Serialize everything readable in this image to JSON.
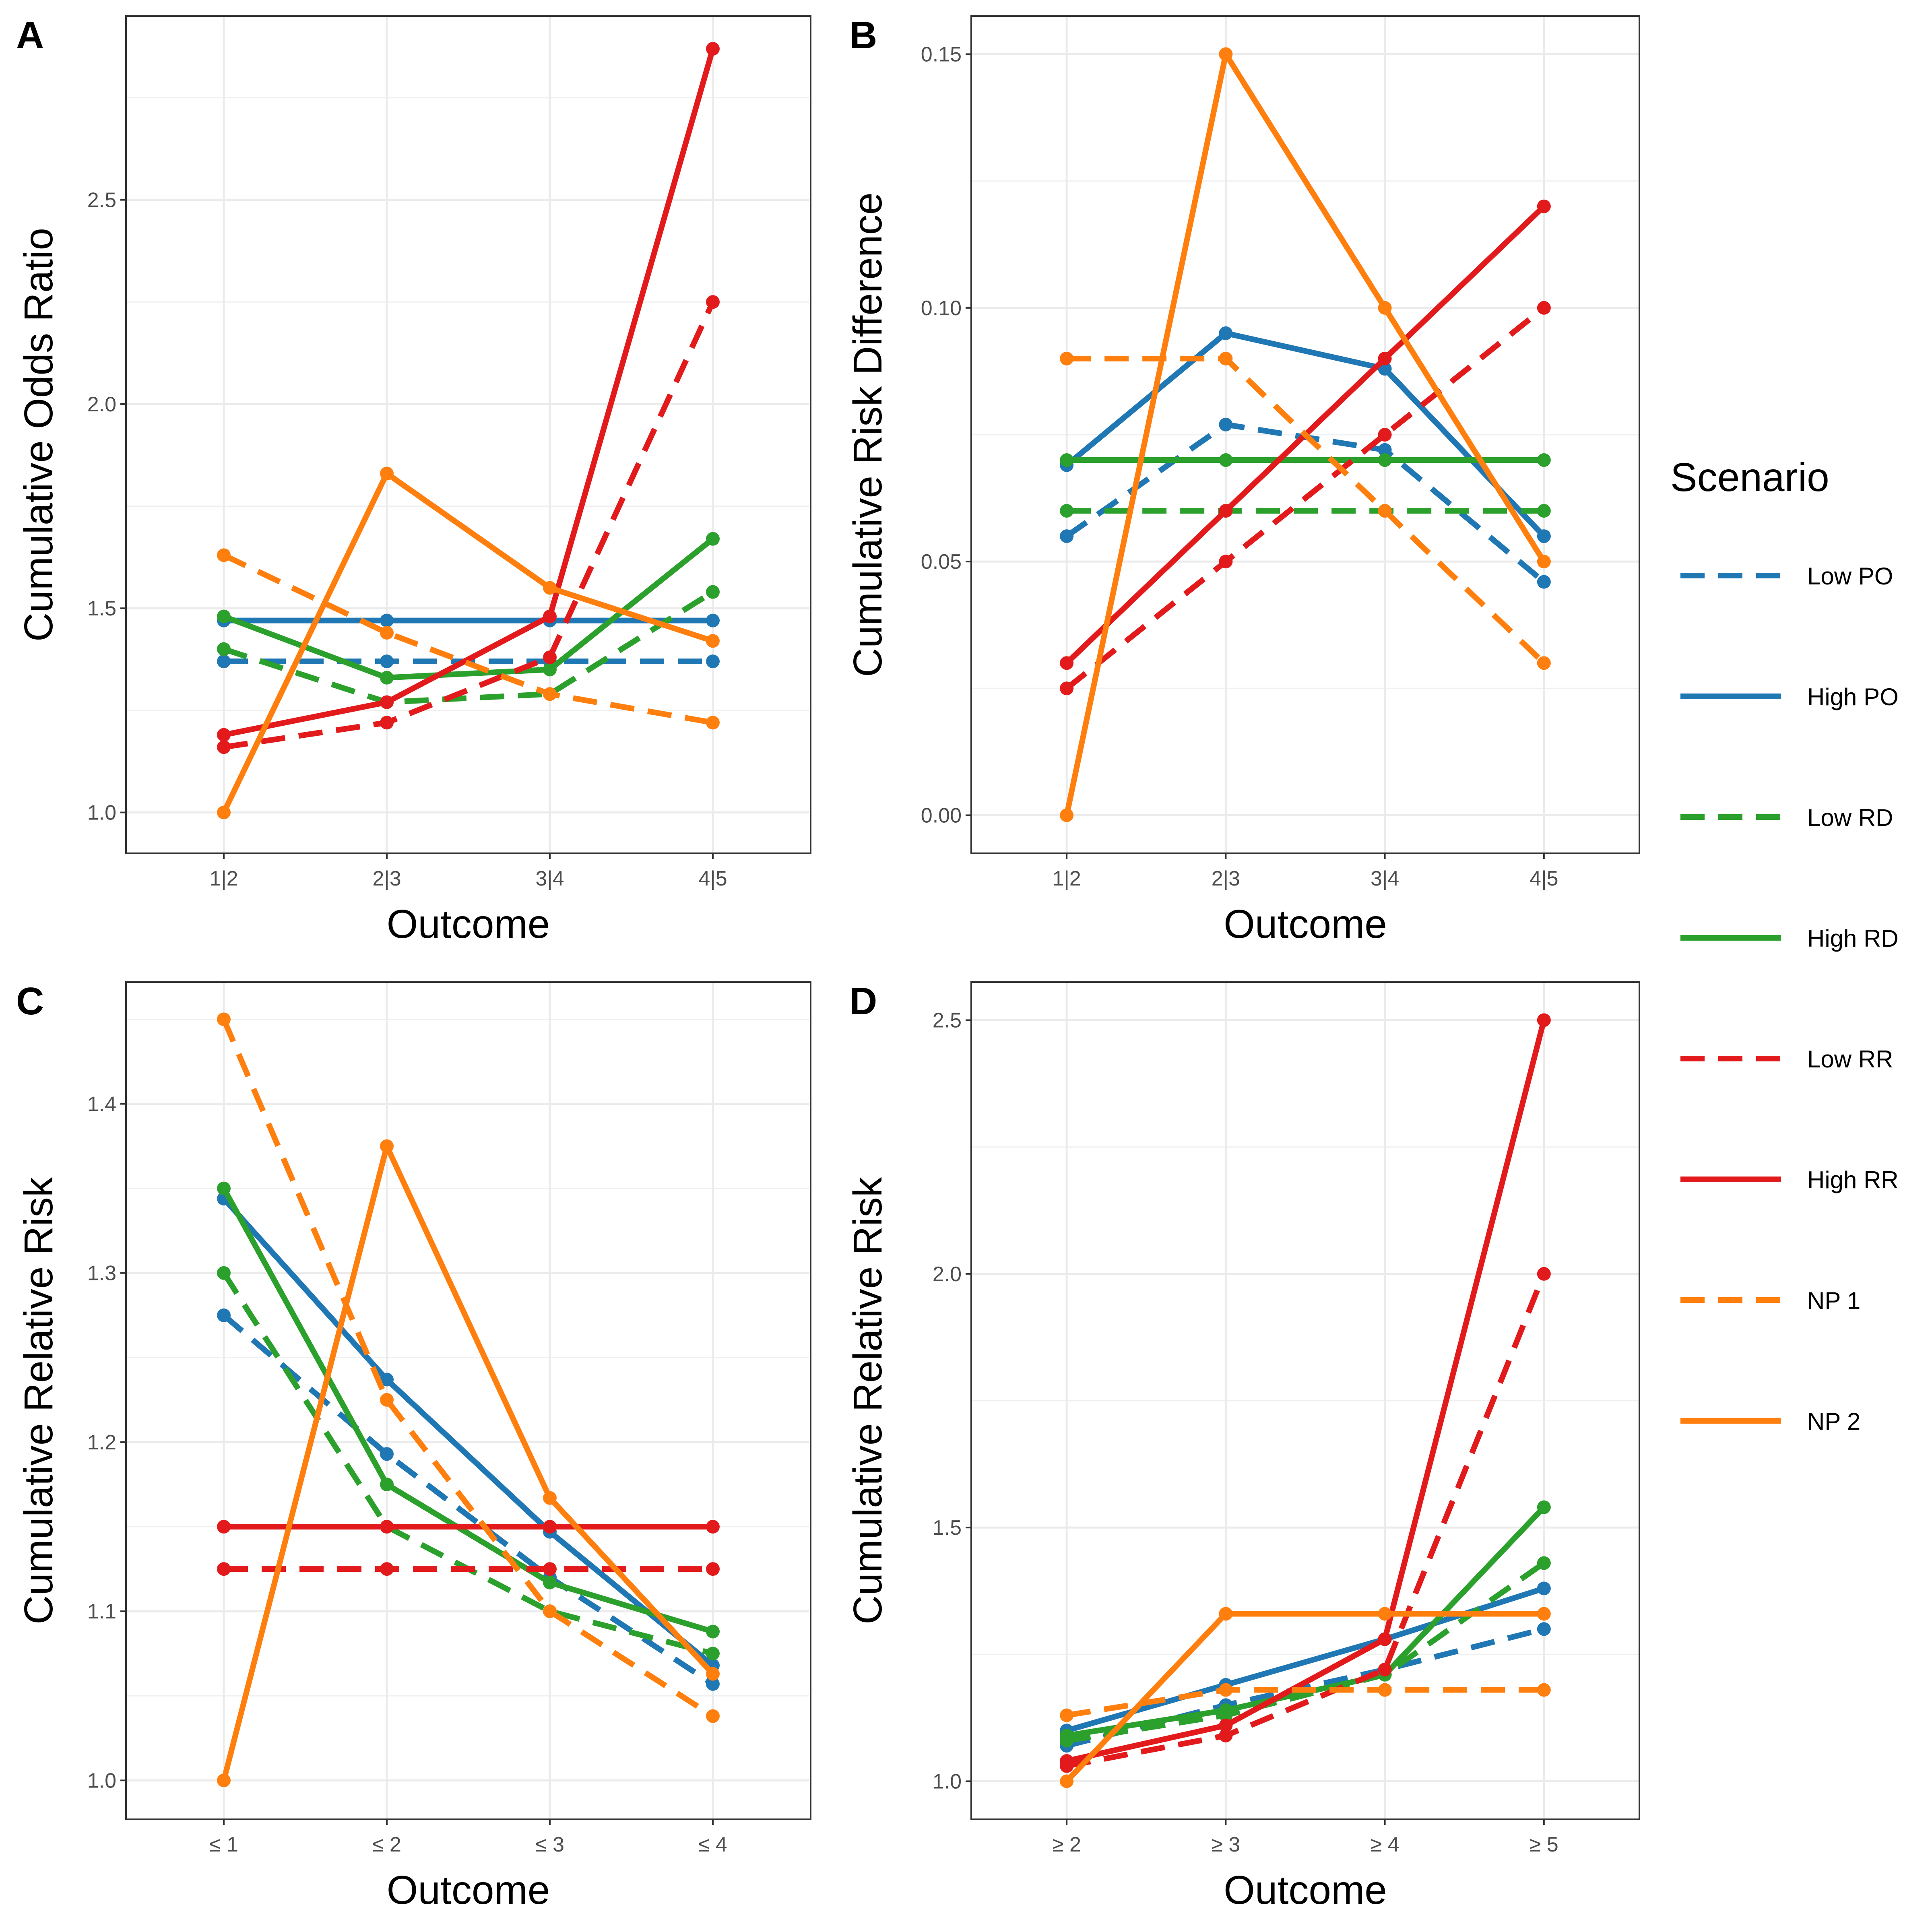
{
  "legend": {
    "title": "Scenario",
    "items": [
      {
        "name": "Low PO",
        "color": "#1f77b4",
        "dashed": true
      },
      {
        "name": "High PO",
        "color": "#1f77b4",
        "dashed": false
      },
      {
        "name": "Low RD",
        "color": "#2ca02c",
        "dashed": true
      },
      {
        "name": "High RD",
        "color": "#2ca02c",
        "dashed": false
      },
      {
        "name": "Low RR",
        "color": "#e31a1c",
        "dashed": true
      },
      {
        "name": "High RR",
        "color": "#e31a1c",
        "dashed": false
      },
      {
        "name": "NP 1",
        "color": "#ff7f0e",
        "dashed": true
      },
      {
        "name": "NP 2",
        "color": "#ff7f0e",
        "dashed": false
      }
    ]
  },
  "chart_data": [
    {
      "panel": "A",
      "type": "line",
      "xlabel": "Outcome",
      "ylabel": "Cumulative Odds Ratio",
      "categories": [
        "1|2",
        "2|3",
        "3|4",
        "4|5"
      ],
      "ylim": [
        0.9,
        2.95
      ],
      "yticks": [
        1.0,
        1.5,
        2.0,
        2.5
      ],
      "ytick_labels": [
        "1.0",
        "1.5",
        "2.0",
        "2.5"
      ],
      "series": [
        {
          "name": "Low PO",
          "values": [
            1.37,
            1.37,
            1.37,
            1.37
          ]
        },
        {
          "name": "High PO",
          "values": [
            1.47,
            1.47,
            1.47,
            1.47
          ]
        },
        {
          "name": "Low RD",
          "values": [
            1.4,
            1.27,
            1.29,
            1.54
          ]
        },
        {
          "name": "High RD",
          "values": [
            1.48,
            1.33,
            1.35,
            1.67
          ]
        },
        {
          "name": "Low RR",
          "values": [
            1.16,
            1.22,
            1.38,
            2.25
          ]
        },
        {
          "name": "High RR",
          "values": [
            1.19,
            1.27,
            1.48,
            2.87
          ]
        },
        {
          "name": "NP 1",
          "values": [
            1.63,
            1.44,
            1.29,
            1.22
          ]
        },
        {
          "name": "NP 2",
          "values": [
            1.0,
            1.83,
            1.55,
            1.42
          ]
        }
      ]
    },
    {
      "panel": "B",
      "type": "line",
      "xlabel": "Outcome",
      "ylabel": "Cumulative Risk Difference",
      "categories": [
        "1|2",
        "2|3",
        "3|4",
        "4|5"
      ],
      "ylim": [
        -0.0075,
        0.1575
      ],
      "yticks": [
        0.0,
        0.05,
        0.1,
        0.15
      ],
      "ytick_labels": [
        "0.00",
        "0.05",
        "0.10",
        "0.15"
      ],
      "series": [
        {
          "name": "Low PO",
          "values": [
            0.055,
            0.077,
            0.072,
            0.046
          ]
        },
        {
          "name": "High PO",
          "values": [
            0.069,
            0.095,
            0.088,
            0.055
          ]
        },
        {
          "name": "Low RD",
          "values": [
            0.06,
            0.06,
            0.06,
            0.06
          ]
        },
        {
          "name": "High RD",
          "values": [
            0.07,
            0.07,
            0.07,
            0.07
          ]
        },
        {
          "name": "Low RR",
          "values": [
            0.025,
            0.05,
            0.075,
            0.1
          ]
        },
        {
          "name": "High RR",
          "values": [
            0.03,
            0.06,
            0.09,
            0.12
          ]
        },
        {
          "name": "NP 1",
          "values": [
            0.09,
            0.09,
            0.06,
            0.03
          ]
        },
        {
          "name": "NP 2",
          "values": [
            0.0,
            0.15,
            0.1,
            0.05
          ]
        }
      ]
    },
    {
      "panel": "C",
      "type": "line",
      "xlabel": "Outcome",
      "ylabel": "Cumulative Relative Risk",
      "categories": [
        "≤ 1",
        "≤ 2",
        "≤ 3",
        "≤ 4"
      ],
      "ylim": [
        0.977,
        1.472
      ],
      "yticks": [
        1.0,
        1.1,
        1.2,
        1.3,
        1.4
      ],
      "ytick_labels": [
        "1.0",
        "1.1",
        "1.2",
        "1.3",
        "1.4"
      ],
      "series": [
        {
          "name": "Low PO",
          "values": [
            1.275,
            1.193,
            1.12,
            1.057
          ]
        },
        {
          "name": "High PO",
          "values": [
            1.344,
            1.237,
            1.147,
            1.068
          ]
        },
        {
          "name": "Low RD",
          "values": [
            1.3,
            1.15,
            1.1,
            1.075
          ]
        },
        {
          "name": "High RD",
          "values": [
            1.35,
            1.175,
            1.117,
            1.088
          ]
        },
        {
          "name": "Low RR",
          "values": [
            1.125,
            1.125,
            1.125,
            1.125
          ]
        },
        {
          "name": "High RR",
          "values": [
            1.15,
            1.15,
            1.15,
            1.15
          ]
        },
        {
          "name": "NP 1",
          "values": [
            1.45,
            1.225,
            1.1,
            1.038
          ]
        },
        {
          "name": "NP 2",
          "values": [
            1.0,
            1.375,
            1.167,
            1.063
          ]
        }
      ]
    },
    {
      "panel": "D",
      "type": "line",
      "xlabel": "Outcome",
      "ylabel": "Cumulative Relative Risk",
      "categories": [
        "≥ 2",
        "≥ 3",
        "≥ 4",
        "≥ 5"
      ],
      "ylim": [
        0.925,
        2.575
      ],
      "yticks": [
        1.0,
        1.5,
        2.0,
        2.5
      ],
      "ytick_labels": [
        "1.0",
        "1.5",
        "2.0",
        "2.5"
      ],
      "series": [
        {
          "name": "Low PO",
          "values": [
            1.07,
            1.15,
            1.22,
            1.3
          ]
        },
        {
          "name": "High PO",
          "values": [
            1.1,
            1.19,
            1.28,
            1.38
          ]
        },
        {
          "name": "Low RD",
          "values": [
            1.08,
            1.13,
            1.21,
            1.43
          ]
        },
        {
          "name": "High RD",
          "values": [
            1.09,
            1.14,
            1.21,
            1.54
          ]
        },
        {
          "name": "Low RR",
          "values": [
            1.03,
            1.09,
            1.22,
            2.0
          ]
        },
        {
          "name": "High RR",
          "values": [
            1.04,
            1.11,
            1.28,
            2.5
          ]
        },
        {
          "name": "NP 1",
          "values": [
            1.13,
            1.18,
            1.18,
            1.18
          ]
        },
        {
          "name": "NP 2",
          "values": [
            1.0,
            1.33,
            1.33,
            1.33
          ]
        }
      ]
    }
  ]
}
